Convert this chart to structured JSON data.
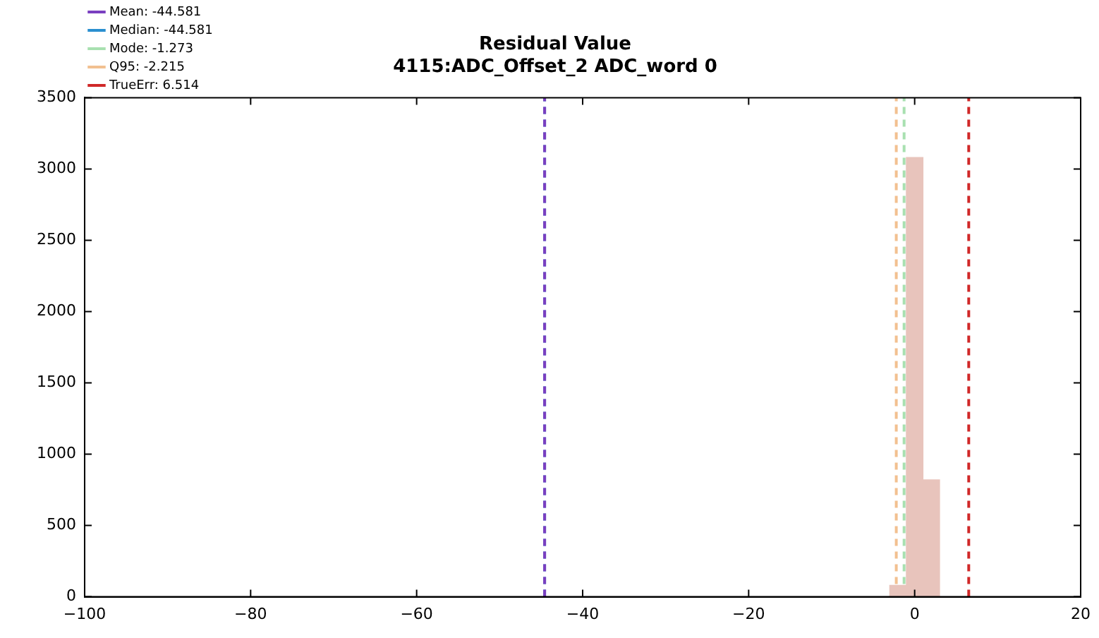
{
  "chart_data": {
    "type": "histogram",
    "title": "Residual Value",
    "subtitle": "4115:ADC_Offset_2 ADC_word 0",
    "bins": [
      -3,
      -1,
      1,
      3
    ],
    "values": [
      80,
      3080,
      820
    ],
    "color": "#e8c4bc",
    "xlim": [
      -100,
      20
    ],
    "xticks": [
      {
        "value": -100,
        "label": "−100"
      },
      {
        "value": -80,
        "label": "−80"
      },
      {
        "value": -60,
        "label": "−60"
      },
      {
        "value": -40,
        "label": "−40"
      },
      {
        "value": -20,
        "label": "−20"
      },
      0,
      20
    ],
    "ylim": [
      0,
      3500
    ],
    "yticks": [
      0,
      500,
      1000,
      1500,
      2000,
      2500,
      3000,
      3500
    ],
    "grid": false,
    "legend": "top left",
    "line_style": "dashed",
    "ref_lines": [
      {
        "axis": "x",
        "value": -44.581,
        "label": "Mean: -44.581",
        "color": "#7a3fc0"
      },
      {
        "axis": "x",
        "value": -44.581,
        "label": "Median: -44.581",
        "color": "#2a8fd0"
      },
      {
        "axis": "x",
        "value": -1.273,
        "label": "Mode: -1.273",
        "color": "#a8e0b0"
      },
      {
        "axis": "x",
        "value": -2.215,
        "label": "Q95: -2.215",
        "color": "#f2c090"
      },
      {
        "axis": "x",
        "value": 6.514,
        "label": "TrueErr: 6.514",
        "color": "#d02828"
      }
    ]
  }
}
